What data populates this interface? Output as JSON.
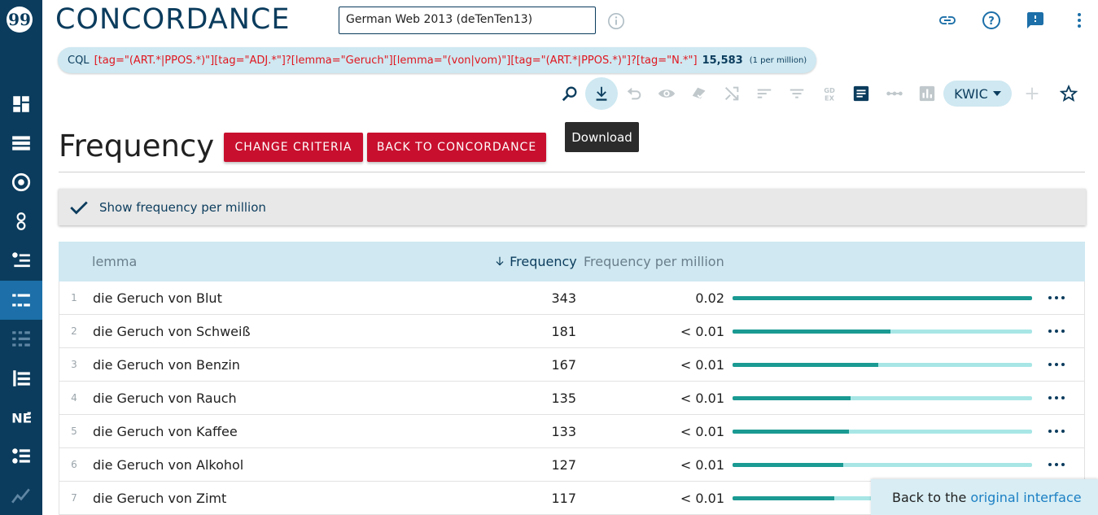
{
  "app": {
    "title": "CONCORDANCE",
    "corpus": "German Web 2013 (deTenTen13)"
  },
  "cql": {
    "label": "CQL",
    "query": "[tag=\"(ART.*|PPOS.*)\"][tag=\"ADJ.*\"]?[lemma=\"Geruch\"][lemma=\"(von|vom)\"][tag=\"(ART.*|PPOS.*)\"]?[tag=\"N.*\"]",
    "count": "15,583",
    "per_million": "(1 per million)"
  },
  "toolbar": {
    "view_mode": "KWIC",
    "tooltip": "Download"
  },
  "page": {
    "title": "Frequency",
    "change_criteria": "CHANGE CRITERIA",
    "back_to_concordance": "BACK TO CONCORDANCE"
  },
  "option": {
    "show_fpm": "Show frequency per million",
    "checked": true
  },
  "table": {
    "headers": {
      "lemma": "lemma",
      "frequency": "Frequency",
      "fpm": "Frequency per million"
    },
    "rows": [
      {
        "n": "1",
        "lemma": "die Geruch von Blut",
        "freq": "343",
        "fpm": "0.02",
        "rel": 1.0
      },
      {
        "n": "2",
        "lemma": "die Geruch von Schweiß",
        "freq": "181",
        "fpm": "< 0.01",
        "rel": 0.528
      },
      {
        "n": "3",
        "lemma": "die Geruch von Benzin",
        "freq": "167",
        "fpm": "< 0.01",
        "rel": 0.487
      },
      {
        "n": "4",
        "lemma": "die Geruch von Rauch",
        "freq": "135",
        "fpm": "< 0.01",
        "rel": 0.394
      },
      {
        "n": "5",
        "lemma": "die Geruch von Kaffee",
        "freq": "133",
        "fpm": "< 0.01",
        "rel": 0.388
      },
      {
        "n": "6",
        "lemma": "die Geruch von Alkohol",
        "freq": "127",
        "fpm": "< 0.01",
        "rel": 0.37
      },
      {
        "n": "7",
        "lemma": "die Geruch von Zimt",
        "freq": "117",
        "fpm": "< 0.01",
        "rel": 0.341
      }
    ]
  },
  "banner": {
    "text": "Back to the",
    "link": "original interface"
  },
  "colors": {
    "sidebar": "#0b3c5d",
    "accent": "#cfe8f1",
    "red": "#c8102e",
    "bar_fill": "#1a9a92",
    "bar_bg": "#a8e6e6"
  }
}
